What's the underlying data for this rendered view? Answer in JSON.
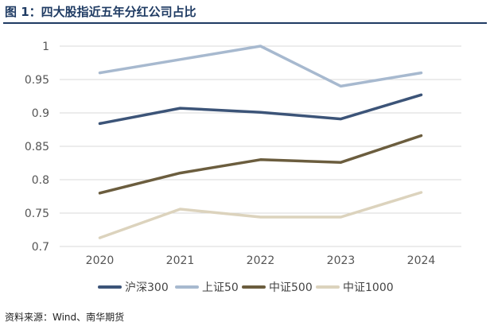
{
  "figure": {
    "title": "图 1：四大股指近五年分红公司占比",
    "source": "资料来源：Wind、南华期货"
  },
  "chart_data": {
    "type": "line",
    "x": [
      "2020",
      "2021",
      "2022",
      "2023",
      "2024"
    ],
    "ylim": [
      0.7,
      1.0
    ],
    "yticks": [
      "0.7",
      "0.75",
      "0.8",
      "0.85",
      "0.9",
      "0.95",
      "1"
    ],
    "grid": true,
    "legend": "bottom",
    "series": [
      {
        "name": "沪深300",
        "color": "#3c5478",
        "values": [
          0.884,
          0.907,
          0.901,
          0.891,
          0.927
        ]
      },
      {
        "name": "上证50",
        "color": "#a7b9cf",
        "values": [
          0.96,
          0.98,
          1.0,
          0.94,
          0.96
        ]
      },
      {
        "name": "中证500",
        "color": "#6b5d3e",
        "values": [
          0.78,
          0.81,
          0.83,
          0.826,
          0.866
        ]
      },
      {
        "name": "中证1000",
        "color": "#dcd3bd",
        "values": [
          0.713,
          0.756,
          0.744,
          0.744,
          0.781
        ]
      }
    ]
  }
}
